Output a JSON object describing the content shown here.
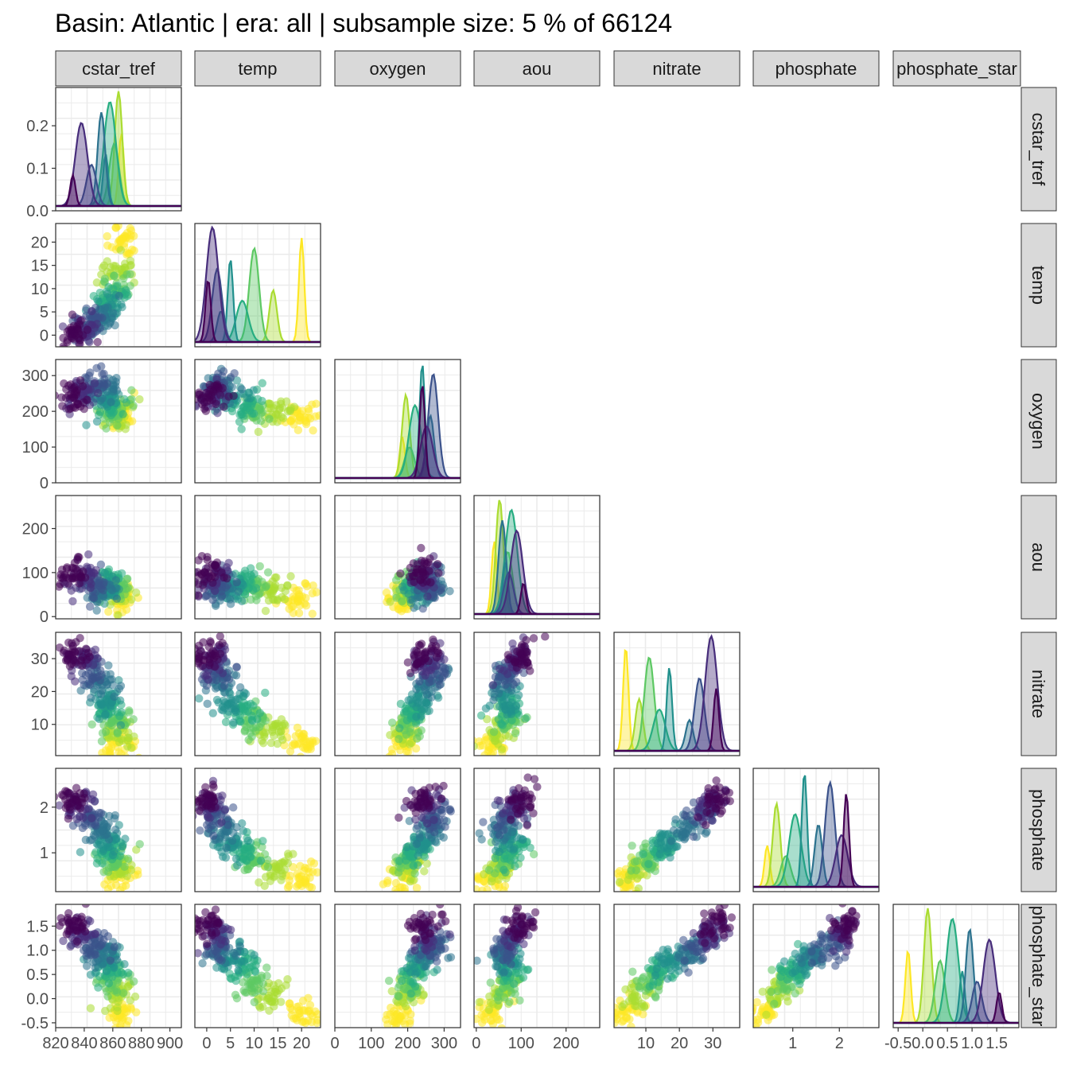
{
  "chart_data": {
    "type": "scatter",
    "title": "Basin: Atlantic | era: all | subsample size: 5 % of 66124",
    "layout": "lower-triangular pairs matrix, density on diagonal",
    "grid": true,
    "legend": "none",
    "variables": [
      "cstar_tref",
      "temp",
      "oxygen",
      "aou",
      "nitrate",
      "phosphate",
      "phosphate_star"
    ],
    "strip_labels": {
      "top": [
        "cstar_tref",
        "temp",
        "oxygen",
        "aou",
        "nitrate",
        "phosphate",
        "phosphate_star"
      ],
      "right": [
        "cstar_tref",
        "temp",
        "oxygen",
        "aou",
        "nitrate",
        "phosphate",
        "phosphate_star"
      ]
    },
    "axes": {
      "cstar_tref": {
        "range": [
          820,
          908
        ],
        "ticks": [
          "820",
          "840",
          "860",
          "880",
          "900"
        ]
      },
      "temp": {
        "range": [
          -2.5,
          24
        ],
        "ticks": [
          "0",
          "5",
          "10",
          "15",
          "20"
        ]
      },
      "oxygen": {
        "range": [
          0,
          345
        ],
        "ticks": [
          "0",
          "100",
          "200",
          "300"
        ]
      },
      "aou": {
        "range": [
          -5,
          275
        ],
        "ticks": [
          "0",
          "100",
          "200"
        ]
      },
      "nitrate": {
        "range": [
          0.5,
          38
        ],
        "ticks": [
          "10",
          "20",
          "30"
        ]
      },
      "phosphate": {
        "range": [
          0.15,
          2.85
        ],
        "ticks": [
          "1",
          "2"
        ]
      },
      "phosphate_star": {
        "range": [
          -0.6,
          1.95
        ],
        "ticks": [
          "-0.5",
          "0.0",
          "0.5",
          "1.0",
          "1.5"
        ]
      }
    },
    "y_axis_ticks": {
      "cstar_tref": [
        "0.0",
        "0.1",
        "0.2"
      ],
      "temp": [
        "0",
        "5",
        "10",
        "15",
        "20"
      ],
      "oxygen": [
        "0",
        "100",
        "200",
        "300"
      ],
      "aou": [
        "0",
        "100",
        "200"
      ],
      "nitrate": [
        "10",
        "20",
        "30"
      ],
      "phosphate": [
        "1",
        "2"
      ],
      "phosphate_star": [
        "-0.5",
        "0.0",
        "0.5",
        "1.0",
        "1.5"
      ]
    },
    "density_cstar_tref_panel": {
      "range": [
        0,
        0.29
      ]
    },
    "groups": {
      "count": 9,
      "colors": [
        "#440154",
        "#472D7B",
        "#3B528B",
        "#2C728E",
        "#21908C",
        "#27AD81",
        "#5DC863",
        "#AADC32",
        "#FDE725"
      ],
      "means": {
        "cstar_tref": [
          832,
          838,
          845,
          852,
          855,
          858,
          861,
          864,
          866
        ],
        "temp": [
          0.3,
          1.2,
          2.2,
          3.0,
          5,
          7.5,
          10,
          14,
          20
        ],
        "oxygen": [
          240,
          252,
          270,
          262,
          240,
          220,
          205,
          195,
          185
        ],
        "aou": [
          105,
          90,
          72,
          58,
          65,
          78,
          70,
          52,
          40
        ],
        "nitrate": [
          31,
          29.5,
          26,
          23,
          17,
          14,
          11,
          8,
          4
        ],
        "phosphate": [
          2.15,
          2.05,
          1.8,
          1.55,
          1.25,
          1.05,
          0.85,
          0.65,
          0.45
        ],
        "phosphate_star": [
          1.55,
          1.35,
          1.1,
          0.95,
          0.8,
          0.6,
          0.35,
          0.1,
          -0.3
        ]
      }
    }
  }
}
